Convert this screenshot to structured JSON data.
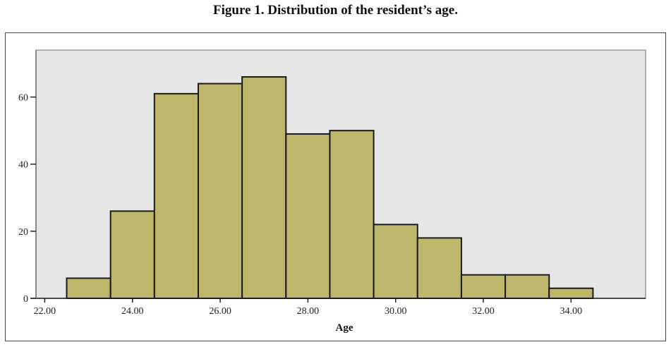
{
  "chart_data": {
    "type": "bar",
    "title": "Figure 1. Distribution of the resident’s age.",
    "xlabel": "Age",
    "ylabel": "",
    "bin_edges": [
      22.5,
      23.5,
      24.5,
      25.5,
      26.5,
      27.5,
      28.5,
      29.5,
      30.5,
      31.5,
      32.5,
      33.5,
      34.5
    ],
    "values": [
      6,
      26,
      61,
      64,
      66,
      49,
      50,
      22,
      18,
      7,
      7,
      3
    ],
    "xlim": [
      21.8,
      35.7
    ],
    "ylim": [
      0,
      74
    ],
    "xticks": [
      "22.00",
      "24.00",
      "26.00",
      "28.00",
      "30.00",
      "32.00",
      "34.00"
    ],
    "xtick_values": [
      22,
      24,
      26,
      28,
      30,
      32,
      34
    ],
    "yticks": [
      "0",
      "20",
      "40",
      "60"
    ],
    "ytick_values": [
      0,
      20,
      40,
      60
    ],
    "grid": false,
    "bar_color": "#bdb76b",
    "bar_edge_color": "#1a1a1a",
    "plot_background": "#e6e6e6"
  }
}
